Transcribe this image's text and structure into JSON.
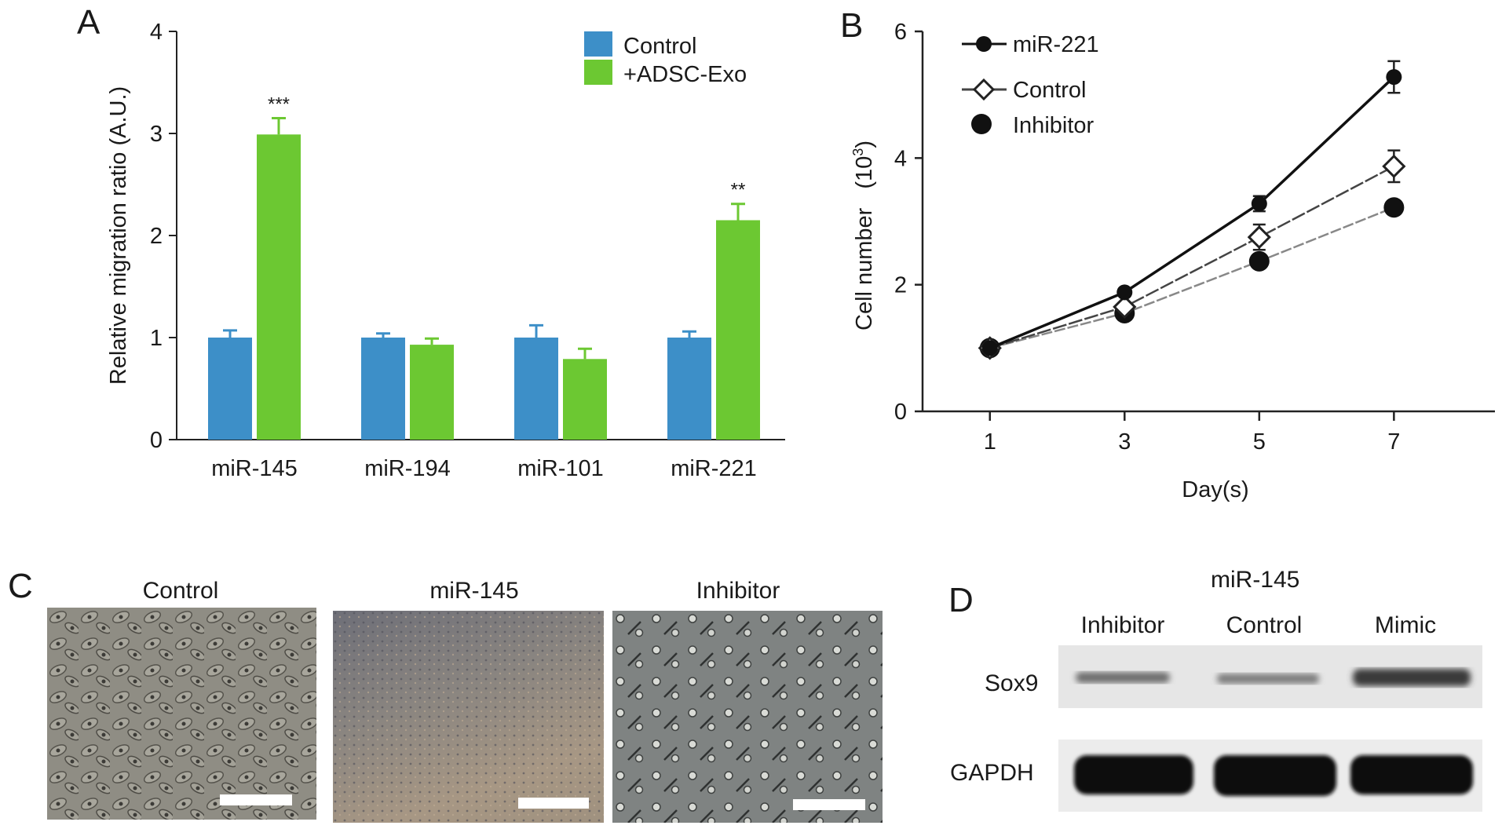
{
  "panels": {
    "a": "A",
    "b": "B",
    "c": "C",
    "d": "D"
  },
  "chart_data": [
    {
      "type": "bar",
      "ylabel": "Relative migration ratio (A.U.)",
      "xlabel": "",
      "ylim": [
        0,
        4
      ],
      "yticks": [
        "0",
        "1",
        "2",
        "3",
        "4"
      ],
      "categories": [
        "miR-145",
        "miR-194",
        "miR-101",
        "miR-221"
      ],
      "series": [
        {
          "name": "Control",
          "color": "#3d8fc8",
          "values": [
            1.0,
            1.0,
            1.0,
            1.0
          ],
          "errors": [
            0.07,
            0.04,
            0.12,
            0.06
          ]
        },
        {
          "name": "+ADSC-Exo",
          "color": "#6cc832",
          "values": [
            2.99,
            0.93,
            0.79,
            2.15
          ],
          "errors": [
            0.16,
            0.06,
            0.1,
            0.16
          ]
        }
      ],
      "annotations": [
        {
          "category": "miR-145",
          "series": "+ADSC-Exo",
          "text": "***"
        },
        {
          "category": "miR-221",
          "series": "+ADSC-Exo",
          "text": "**"
        }
      ],
      "legend_position": "top-right",
      "grid": false
    },
    {
      "type": "line",
      "xlabel": "Day(s)",
      "ylabel_main": "Cell number",
      "ylabel_unit_base": "(10",
      "ylabel_unit_exp": "3",
      "ylabel_unit_close": ")",
      "x": [
        1,
        3,
        5,
        7
      ],
      "xticks": [
        "1",
        "3",
        "5",
        "7"
      ],
      "yticks": [
        "0",
        "2",
        "4",
        "6"
      ],
      "xlim": [
        0,
        8.5
      ],
      "ylim": [
        0,
        6
      ],
      "series": [
        {
          "name": "miR-221",
          "marker": "circle",
          "line": "solid",
          "color": "#111111",
          "values": [
            1.0,
            1.88,
            3.28,
            5.28
          ],
          "errors": [
            0.0,
            0.06,
            0.12,
            0.25
          ]
        },
        {
          "name": "Control",
          "marker": "diamond",
          "line": "dashed",
          "color": "#444444",
          "values": [
            1.0,
            1.65,
            2.75,
            3.87
          ],
          "errors": [
            0.0,
            0.06,
            0.2,
            0.25
          ]
        },
        {
          "name": "Inhibitor",
          "marker": "circle",
          "line": "dashed",
          "color": "#888888",
          "values": [
            1.0,
            1.55,
            2.37,
            3.22
          ],
          "errors": [
            0.0,
            0.05,
            0.08,
            0.06
          ]
        }
      ],
      "legend_position": "top-left",
      "grid": false
    }
  ],
  "micrographs": {
    "titles": [
      "Control",
      "miR-145",
      "Inhibitor"
    ]
  },
  "blot": {
    "group_label": "miR-145",
    "lanes": [
      "Inhibitor",
      "Control",
      "Mimic"
    ],
    "rows": [
      "Sox9",
      "GAPDH"
    ]
  }
}
